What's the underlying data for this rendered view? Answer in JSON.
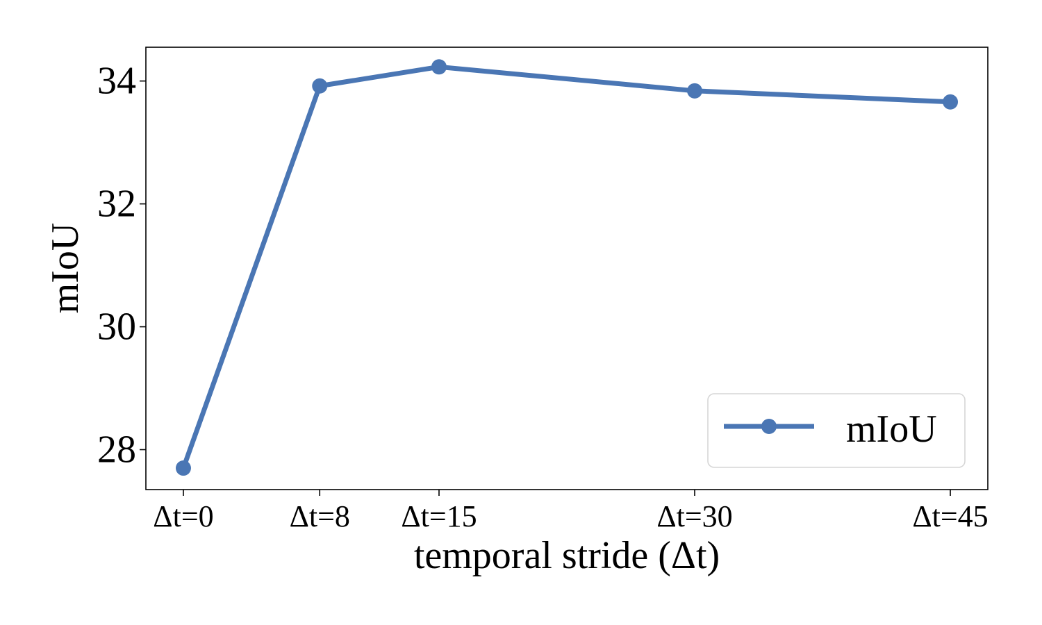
{
  "chart_data": {
    "type": "line",
    "title": "",
    "xlabel": "temporal stride (Δt)",
    "ylabel": "mIoU",
    "x": [
      0,
      8,
      15,
      30,
      45
    ],
    "x_tick_labels": [
      "Δt=0",
      "Δt=8",
      "Δt=15",
      "Δt=30",
      "Δt=45"
    ],
    "xlim": [
      -2.2,
      47.2
    ],
    "ylim": [
      27.35,
      34.55
    ],
    "y_ticks": [
      28,
      30,
      32,
      34
    ],
    "grid": false,
    "legend_position": "bottom-right",
    "series": [
      {
        "name": "mIoU",
        "color": "#4a76b4",
        "marker": "circle",
        "values": [
          27.7,
          33.92,
          34.23,
          33.84,
          33.66
        ]
      }
    ]
  }
}
